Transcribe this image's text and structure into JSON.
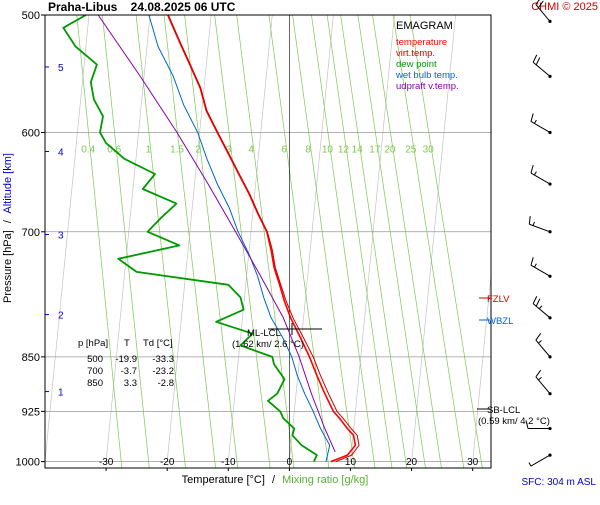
{
  "header": {
    "title": "Praha-Libus    24.08.2025 06 UTC",
    "copyright": "CHMI © 2025"
  },
  "axes": {
    "xlabel_temperature": "Temperature [°C]",
    "xlabel_separator": "/",
    "xlabel_mixing": "Mixing ratio [g/kg]",
    "ylabel_pressure": "Pressure [hPa]",
    "ylabel_separator": "/",
    "ylabel_altitude": "Altitude [km]",
    "temperature_ticks": [
      "-30",
      "-20",
      "-10",
      "0",
      "10",
      "20",
      "30"
    ],
    "pressure_ticks": [
      "500",
      "600",
      "700",
      "850",
      "925",
      "1000"
    ],
    "altitude_ticks": [
      "1",
      "2",
      "3",
      "4",
      "5"
    ],
    "mixing_ratio_labels": [
      "0.4",
      "0.6",
      "1",
      "1.5",
      "2",
      "3",
      "4",
      "6",
      "8",
      "10",
      "12",
      "14",
      "17",
      "20",
      "25",
      "30"
    ]
  },
  "legend": {
    "title": "EMAGRAM",
    "items": [
      {
        "label": "temperature",
        "color": "#ff0000"
      },
      {
        "label": "virt.temp.",
        "color": "#cc0000"
      },
      {
        "label": "dew point",
        "color": "#009900"
      },
      {
        "label": "wet bulb temp.",
        "color": "#0066cc"
      },
      {
        "label": "udpraft v.temp.",
        "color": "#8800aa"
      }
    ]
  },
  "levels_table": {
    "headers": [
      "p [hPa]",
      "T",
      "Td [°C]"
    ],
    "rows": [
      [
        "500",
        "-19.9",
        "-33.3"
      ],
      [
        "700",
        "-3.7",
        "-23.2"
      ],
      [
        "850",
        "3.3",
        "-2.8"
      ]
    ]
  },
  "levels": {
    "ml_lcl_name": "ML-LCL",
    "ml_lcl_value": "(1.62 km/ 2.6 °C)",
    "sb_lcl_name": "SB-LCL",
    "sb_lcl_value": "(0.59 km/ 4.2 °C)",
    "fzlv": "FZLV",
    "wbzl": "WBZL"
  },
  "footer": {
    "sfc": "SFC: 304 m ASL"
  },
  "colors": {
    "temperature": "#ff0000",
    "virtual_temperature": "#cc0000",
    "dew_point": "#009900",
    "wet_bulb": "#0066cc",
    "updraft": "#8800aa",
    "isotherm_grid": "#bbbbbb",
    "mixing_ratio": "#7ec850",
    "altitude": "#0000cc",
    "level_marker": "#cc0000",
    "wbzl_marker": "#0066cc"
  },
  "chart_data": {
    "type": "line",
    "subtype": "emagram",
    "x_axis": "Temperature [°C]",
    "y_axis": "Pressure [hPa]",
    "xlim": [
      -40,
      33
    ],
    "ylim": [
      1010,
      500
    ],
    "y_scale": "log",
    "pressure_grid": [
      500,
      600,
      700,
      850,
      925,
      1000
    ],
    "altitude_km": [
      {
        "km": 1,
        "p": 897
      },
      {
        "km": 2,
        "p": 796
      },
      {
        "km": 3,
        "p": 703
      },
      {
        "km": 4,
        "p": 618
      },
      {
        "km": 5,
        "p": 542
      }
    ],
    "series": [
      {
        "name": "temperature",
        "p": [
          1000,
          990,
          975,
          960,
          950,
          935,
          925,
          900,
          875,
          850,
          825,
          800,
          780,
          760,
          740,
          720,
          700,
          680,
          660,
          640,
          620,
          600,
          580,
          560,
          540,
          520,
          500
        ],
        "t": [
          6.8,
          9.5,
          10.8,
          10.5,
          9.5,
          8.2,
          7.2,
          5.8,
          4.5,
          3.3,
          1.8,
          0.2,
          -0.8,
          -1.6,
          -2.5,
          -3.0,
          -3.7,
          -5.2,
          -6.6,
          -8.3,
          -10.0,
          -11.8,
          -13.6,
          -14.6,
          -16.3,
          -18.1,
          -19.9
        ]
      },
      {
        "name": "virt.temp.",
        "p": [
          1000,
          990,
          975,
          960,
          950,
          935,
          925,
          900,
          875,
          850,
          825,
          800,
          780,
          760,
          740,
          720,
          700,
          680,
          660,
          640,
          620,
          600,
          580,
          560,
          540,
          520,
          500
        ],
        "t": [
          7.6,
          10.2,
          11.4,
          11.1,
          10.1,
          8.8,
          7.8,
          6.4,
          5.1,
          3.9,
          2.3,
          0.6,
          -0.5,
          -1.4,
          -2.3,
          -2.8,
          -3.6,
          -5.1,
          -6.5,
          -8.2,
          -9.9,
          -11.7,
          -13.5,
          -14.5,
          -16.2,
          -18.0,
          -19.8
        ]
      },
      {
        "name": "dew point",
        "p": [
          1000,
          990,
          975,
          960,
          950,
          935,
          925,
          910,
          900,
          880,
          860,
          850,
          835,
          820,
          805,
          790,
          775,
          760,
          745,
          730,
          715,
          700,
          685,
          670,
          655,
          640,
          625,
          610,
          600,
          585,
          570,
          555,
          540,
          525,
          510,
          500
        ],
        "t": [
          4.0,
          4.5,
          2.0,
          0.5,
          0.8,
          -1.0,
          -1.5,
          -3.5,
          -2.0,
          -0.8,
          -2.5,
          -2.8,
          -8.0,
          -6.0,
          -12.0,
          -7.5,
          -8.0,
          -10.0,
          -25.0,
          -28.0,
          -18.0,
          -23.2,
          -21.0,
          -18.5,
          -24.0,
          -22.0,
          -27.0,
          -30.0,
          -31.0,
          -30.5,
          -32.0,
          -32.5,
          -31.5,
          -35.0,
          -37.0,
          -33.3
        ]
      },
      {
        "name": "wet bulb temp.",
        "p": [
          1000,
          975,
          950,
          925,
          900,
          875,
          850,
          825,
          800,
          775,
          750,
          725,
          700,
          675,
          650,
          625,
          600,
          575,
          550,
          525,
          500
        ],
        "t": [
          6.0,
          6.6,
          5.1,
          3.9,
          2.5,
          1.3,
          0.4,
          -1.1,
          -3.0,
          -4.2,
          -5.2,
          -6.6,
          -8.4,
          -9.8,
          -11.8,
          -13.5,
          -15.0,
          -17.3,
          -19.0,
          -21.5,
          -23.0
        ]
      },
      {
        "name": "udpraft v.temp.",
        "p": [
          985,
          950,
          900,
          850,
          800,
          750,
          700,
          650,
          600,
          550,
          500
        ],
        "t": [
          7.5,
          5.8,
          3.6,
          1.6,
          -1.0,
          -4.7,
          -8.8,
          -13.3,
          -18.4,
          -24.4,
          -31.3
        ]
      }
    ],
    "wind_barbs": [
      {
        "p": 505,
        "dir": 320,
        "speed_kt": 20
      },
      {
        "p": 550,
        "dir": 310,
        "speed_kt": 20
      },
      {
        "p": 600,
        "dir": 300,
        "speed_kt": 15
      },
      {
        "p": 650,
        "dir": 300,
        "speed_kt": 15
      },
      {
        "p": 700,
        "dir": 290,
        "speed_kt": 15
      },
      {
        "p": 750,
        "dir": 300,
        "speed_kt": 15
      },
      {
        "p": 800,
        "dir": 310,
        "speed_kt": 25
      },
      {
        "p": 850,
        "dir": 320,
        "speed_kt": 15
      },
      {
        "p": 900,
        "dir": 320,
        "speed_kt": 15
      },
      {
        "p": 950,
        "dir": 270,
        "speed_kt": 10
      },
      {
        "p": 990,
        "dir": 240,
        "speed_kt": 5
      }
    ]
  }
}
